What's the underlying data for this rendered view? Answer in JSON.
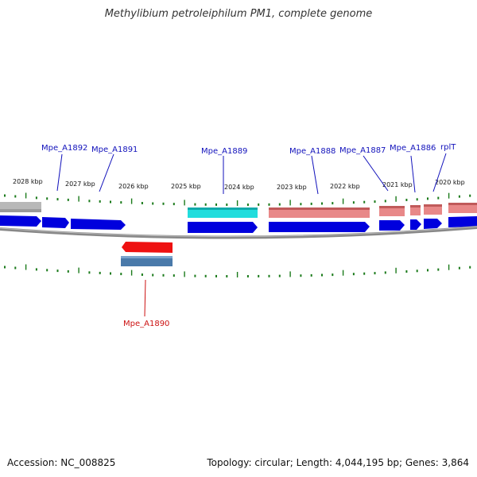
{
  "title": "Methylibium petroleiphilum PM1, complete genome",
  "footer": {
    "accession": "Accession: NC_008825",
    "topology": "Topology: circular; Length: 4,044,195 bp; Genes: 3,864"
  },
  "colors": {
    "cds": "#0000dd",
    "gene_gray": "#b8b8b8",
    "gene_cyan": "#22dddd",
    "gene_pink": "#e88888",
    "gene_red": "#ee1111",
    "gene_steel": "#4a7aaa",
    "tick": "#1a7a1a",
    "backbone": "#888888",
    "label_forward": "#1111bb",
    "label_reverse": "#cc1111"
  },
  "scale_ticks": [
    "2028 kbp",
    "2027 kbp",
    "2026 kbp",
    "2025 kbp",
    "2024 kbp",
    "2023 kbp",
    "2022 kbp",
    "2021 kbp",
    "2020 kbp"
  ],
  "gene_labels": [
    {
      "name": "Mpe_A1892",
      "strand": "forward"
    },
    {
      "name": "Mpe_A1891",
      "strand": "forward"
    },
    {
      "name": "Mpe_A1889",
      "strand": "forward"
    },
    {
      "name": "Mpe_A1888",
      "strand": "forward"
    },
    {
      "name": "Mpe_A1887",
      "strand": "forward"
    },
    {
      "name": "Mpe_A1886",
      "strand": "forward"
    },
    {
      "name": "rplT",
      "strand": "forward"
    },
    {
      "name": "Mpe_A1890",
      "strand": "reverse"
    }
  ]
}
